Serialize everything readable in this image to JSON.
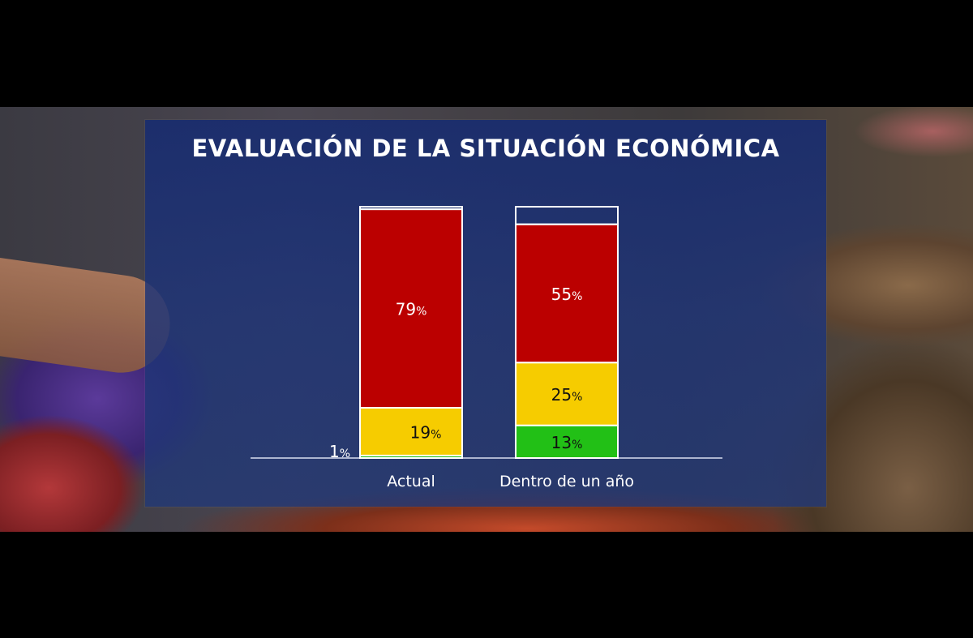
{
  "chart_data": {
    "type": "bar",
    "stacked": true,
    "title": "EVALUACIÓN DE LA SITUACIÓN ECONÓMICA",
    "categories": [
      "Actual",
      "Dentro de un año"
    ],
    "series": [
      {
        "color": "#22c016",
        "values": [
          1,
          13
        ],
        "labels": [
          "1%",
          "13%"
        ]
      },
      {
        "color": "#f6cc00",
        "values": [
          19,
          25
        ],
        "labels": [
          "19%",
          "25%"
        ]
      },
      {
        "color": "#bb0000",
        "values": [
          79,
          55
        ],
        "labels": [
          "79%",
          "55%"
        ]
      },
      {
        "color": "transparent",
        "values": [
          1,
          7
        ],
        "labels": [
          "",
          ""
        ]
      }
    ],
    "ylim": [
      0,
      100
    ],
    "grid": false,
    "legend": "none"
  }
}
